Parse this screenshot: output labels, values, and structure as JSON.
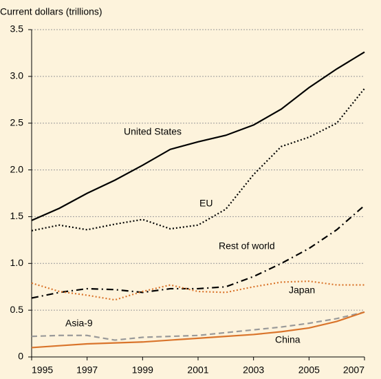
{
  "chart_data": {
    "type": "line",
    "y_label": "Current dollars (trillions)",
    "x": [
      1995,
      1996,
      1997,
      1998,
      1999,
      2000,
      2001,
      2002,
      2003,
      2004,
      2005,
      2006,
      2007
    ],
    "series": [
      {
        "name": "United States",
        "color": "#000000",
        "style": "solid",
        "values": [
          1.46,
          1.59,
          1.75,
          1.89,
          2.05,
          2.22,
          2.3,
          2.37,
          2.48,
          2.65,
          2.88,
          3.08,
          3.26
        ]
      },
      {
        "name": "EU",
        "color": "#000000",
        "style": "dotted",
        "values": [
          1.35,
          1.41,
          1.36,
          1.42,
          1.47,
          1.37,
          1.41,
          1.58,
          1.95,
          2.25,
          2.35,
          2.5,
          2.87
        ]
      },
      {
        "name": "Rest of world",
        "color": "#000000",
        "style": "dashdot",
        "values": [
          0.63,
          0.69,
          0.73,
          0.72,
          0.69,
          0.73,
          0.73,
          0.75,
          0.86,
          1.0,
          1.16,
          1.36,
          1.62
        ]
      },
      {
        "name": "Japan",
        "color": "#d9742b",
        "style": "dotted",
        "values": [
          0.79,
          0.7,
          0.66,
          0.61,
          0.7,
          0.77,
          0.7,
          0.69,
          0.75,
          0.8,
          0.81,
          0.77,
          0.77
        ]
      },
      {
        "name": "Asia-9",
        "color": "#999999",
        "style": "dashed",
        "values": [
          0.22,
          0.23,
          0.23,
          0.18,
          0.21,
          0.22,
          0.23,
          0.26,
          0.29,
          0.32,
          0.36,
          0.41,
          0.48
        ]
      },
      {
        "name": "China",
        "color": "#d9742b",
        "style": "solid",
        "values": [
          0.1,
          0.12,
          0.14,
          0.15,
          0.16,
          0.18,
          0.2,
          0.22,
          0.24,
          0.27,
          0.31,
          0.38,
          0.48
        ]
      }
    ],
    "xlim": [
      1995,
      2007
    ],
    "xticks": [
      1995,
      1997,
      1999,
      2001,
      2003,
      2005,
      2007
    ],
    "ylim": [
      0,
      3.5
    ],
    "yticks": [
      0,
      0.5,
      {
        "value": 1,
        "label": "1.0"
      },
      1.5,
      {
        "value": 2,
        "label": "2.0"
      },
      2.5,
      {
        "value": 3,
        "label": "3.0"
      },
      3.5
    ],
    "grid": true
  }
}
